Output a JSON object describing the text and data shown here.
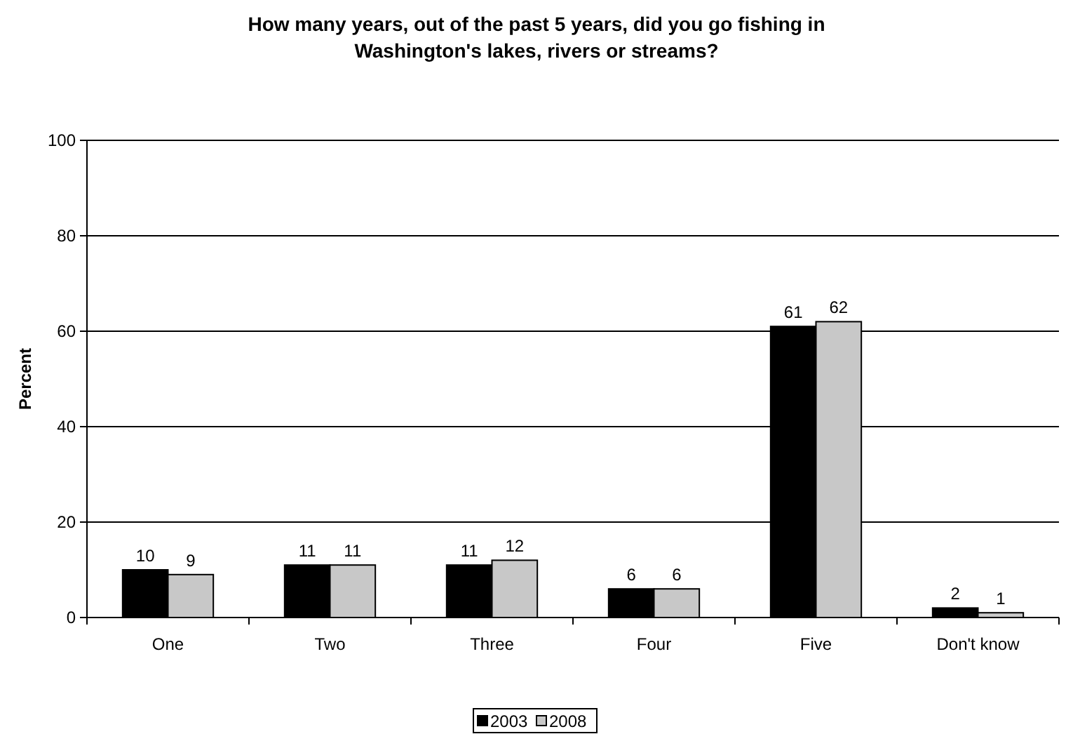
{
  "chart_data": {
    "type": "bar",
    "title": "How many years, out of the past 5 years, did you go fishing in Washington's lakes, rivers or streams?",
    "ylabel": "Percent",
    "categories": [
      "One",
      "Two",
      "Three",
      "Four",
      "Five",
      "Don't know"
    ],
    "series": [
      {
        "name": "2003",
        "color": "#000000",
        "values": [
          10,
          11,
          11,
          6,
          61,
          2
        ]
      },
      {
        "name": "2008",
        "color": "#c8c8c8",
        "values": [
          9,
          11,
          12,
          6,
          62,
          1
        ]
      }
    ],
    "ylim": [
      0,
      100
    ],
    "yticks": [
      0,
      20,
      40,
      60,
      80,
      100
    ],
    "grid": "y",
    "legend": "bottom",
    "data_labels": true
  }
}
